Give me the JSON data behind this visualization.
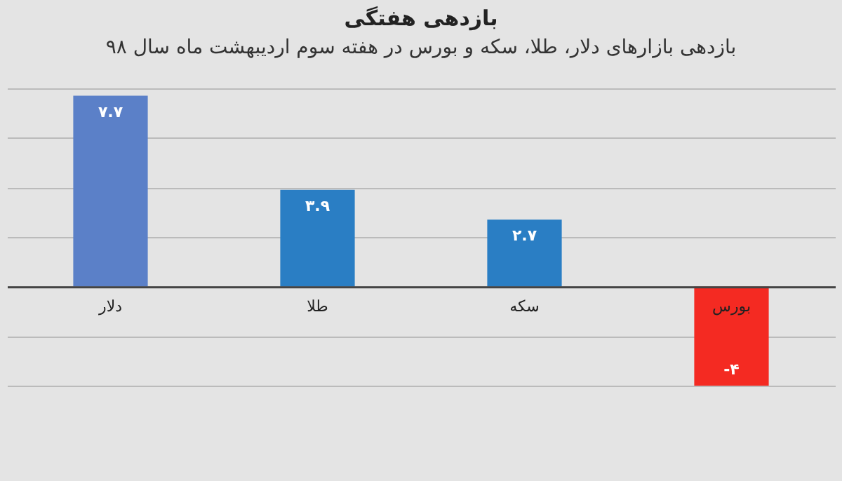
{
  "chart_data": {
    "type": "bar",
    "title": "بازدهی هفتگی",
    "subtitle": "بازدهی بازارهای دلار، طلا، سکه و بورس در هفته سوم اردیبهشت ماه سال ۹۸",
    "categories": [
      "دلار",
      "طلا",
      "سکه",
      "بورس"
    ],
    "values": [
      7.7,
      3.9,
      2.7,
      -4
    ],
    "colors": [
      "#5b80c8",
      "#2a7ec4",
      "#2a7ec4",
      "#f42a22"
    ],
    "value_labels": [
      "۷.۷",
      "۳.۹",
      "۲.۷",
      "-۴"
    ],
    "ylim": [
      -4,
      8
    ],
    "grid": "y",
    "tick_labels": "x"
  }
}
